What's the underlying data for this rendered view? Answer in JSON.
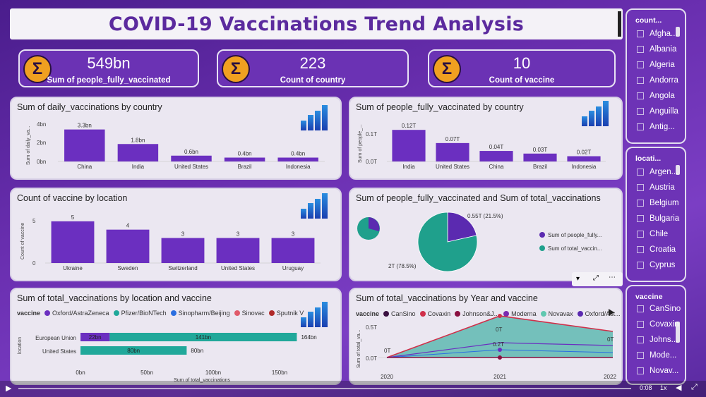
{
  "title": "COVID-19 Vaccinations Trend Analysis",
  "kpis": [
    {
      "value": "549bn",
      "label": "Sum of people_fully_vaccinated",
      "icon": "sigma-icon"
    },
    {
      "value": "223",
      "label": "Count of country",
      "icon": "sigma-icon"
    },
    {
      "value": "10",
      "label": "Count of vaccine",
      "icon": "sigma-icon"
    }
  ],
  "charts": {
    "daily": {
      "title": "Sum of daily_vaccinations by country",
      "ylabel": "Sum of daily_va...",
      "ticks": [
        "4bn",
        "2bn",
        "0bn"
      ]
    },
    "fully": {
      "title": "Sum of people_fully_vaccinated by country",
      "ylabel": "Sum of people_...",
      "ticks": [
        "0.1T",
        "0.0T"
      ]
    },
    "count": {
      "title": "Count of vaccine by location",
      "ylabel": "Count of vaccine",
      "ticks": [
        "5",
        "0"
      ]
    },
    "pie": {
      "title": "Sum of people_fully_vaccinated and Sum of total_vaccinations",
      "legend": [
        "Sum of people_fully...",
        "Sum of total_vaccin..."
      ],
      "labels": [
        "0.55T (21.5%)",
        "2T (78.5%)"
      ]
    },
    "stacked": {
      "title": "Sum of total_vaccinations by location and vaccine",
      "legend_title": "vaccine",
      "legend": [
        "Oxford/AstraZeneca",
        "Pfizer/BioNTech",
        "Sinopharm/Beijing",
        "Sinovac",
        "Sputnik V"
      ],
      "ylabel": "location",
      "xlabel": "Sum of total_vaccinations",
      "ticks": [
        "0bn",
        "50bn",
        "100bn",
        "150bn"
      ],
      "seg_labels": [
        "22bn",
        "141bn",
        "80bn"
      ],
      "totals": [
        "164bn",
        "80bn"
      ]
    },
    "area": {
      "title": "Sum of total_vaccinations by Year and vaccine",
      "legend_title": "vaccine",
      "legend": [
        "CanSino",
        "Covaxin",
        "Johnson&J...",
        "Moderna",
        "Novavax",
        "Oxford/Ast..."
      ],
      "ylabel": "Sum of total_va...",
      "ticks": [
        "0.5T",
        "0.0T"
      ],
      "xticks": [
        "2020",
        "2021",
        "2022"
      ],
      "annotations": [
        "0T",
        "0T",
        "0.2T",
        "0T"
      ]
    }
  },
  "chart_data": [
    {
      "type": "bar",
      "title": "Sum of daily_vaccinations by country",
      "categories": [
        "China",
        "India",
        "United States",
        "Brazil",
        "Indonesia"
      ],
      "values": [
        3.3,
        1.8,
        0.6,
        0.4,
        0.4
      ],
      "labels": [
        "3.3bn",
        "1.8bn",
        "0.6bn",
        "0.4bn",
        "0.4bn"
      ],
      "ylim": [
        0,
        4
      ],
      "color": "#6b2fc0"
    },
    {
      "type": "bar",
      "title": "Sum of people_fully_vaccinated by country",
      "categories": [
        "India",
        "United States",
        "China",
        "Brazil",
        "Indonesia"
      ],
      "values": [
        0.12,
        0.07,
        0.04,
        0.03,
        0.02
      ],
      "labels": [
        "0.12T",
        "0.07T",
        "0.04T",
        "0.03T",
        "0.02T"
      ],
      "ylim": [
        0,
        0.15
      ],
      "color": "#6b2fc0"
    },
    {
      "type": "bar",
      "title": "Count of vaccine by location",
      "categories": [
        "Ukraine",
        "Sweden",
        "Switzerland",
        "United States",
        "Uruguay"
      ],
      "values": [
        5,
        4,
        3,
        3,
        3
      ],
      "labels": [
        "5",
        "4",
        "3",
        "3",
        "3"
      ],
      "ylim": [
        0,
        6
      ],
      "color": "#6b2fc0"
    },
    {
      "type": "pie",
      "title": "Sum of people_fully_vaccinated and Sum of total_vaccinations",
      "slices": [
        {
          "name": "Sum of people_fully...",
          "value": 21.5,
          "color": "#5b2ab0"
        },
        {
          "name": "Sum of total_vaccin...",
          "value": 78.5,
          "color": "#1fa08c"
        }
      ]
    },
    {
      "type": "bar",
      "title": "Sum of total_vaccinations by location and vaccine",
      "categories": [
        "European Union",
        "United States"
      ],
      "series": [
        {
          "name": "Oxford/AstraZeneca",
          "values": [
            22,
            0
          ],
          "color": "#6b2fc0"
        },
        {
          "name": "Pfizer/BioNTech",
          "values": [
            141,
            80
          ],
          "color": "#20a89a"
        }
      ],
      "xlim": [
        0,
        175
      ]
    },
    {
      "type": "area",
      "title": "Sum of total_vaccinations by Year and vaccine",
      "x": [
        "2020",
        "2021",
        "2022"
      ],
      "ylim": [
        0,
        0.5
      ]
    }
  ],
  "slicers": [
    {
      "header": "count...",
      "items": [
        "Afgha...",
        "Albania",
        "Algeria",
        "Andorra",
        "Angola",
        "Anguilla",
        "Antig..."
      ]
    },
    {
      "header": "locati...",
      "items": [
        "Argen...",
        "Austria",
        "Belgium",
        "Bulgaria",
        "Chile",
        "Croatia",
        "Cyprus"
      ]
    },
    {
      "header": "vaccine",
      "items": [
        "CanSino",
        "Covaxin",
        "Johns...",
        "Mode...",
        "Novav..."
      ]
    }
  ],
  "video": {
    "time": "0:08",
    "speed": "1x"
  },
  "colors": {
    "accent": "#6b2fc0",
    "teal": "#20a89a",
    "bg": "#5a2aa0"
  }
}
